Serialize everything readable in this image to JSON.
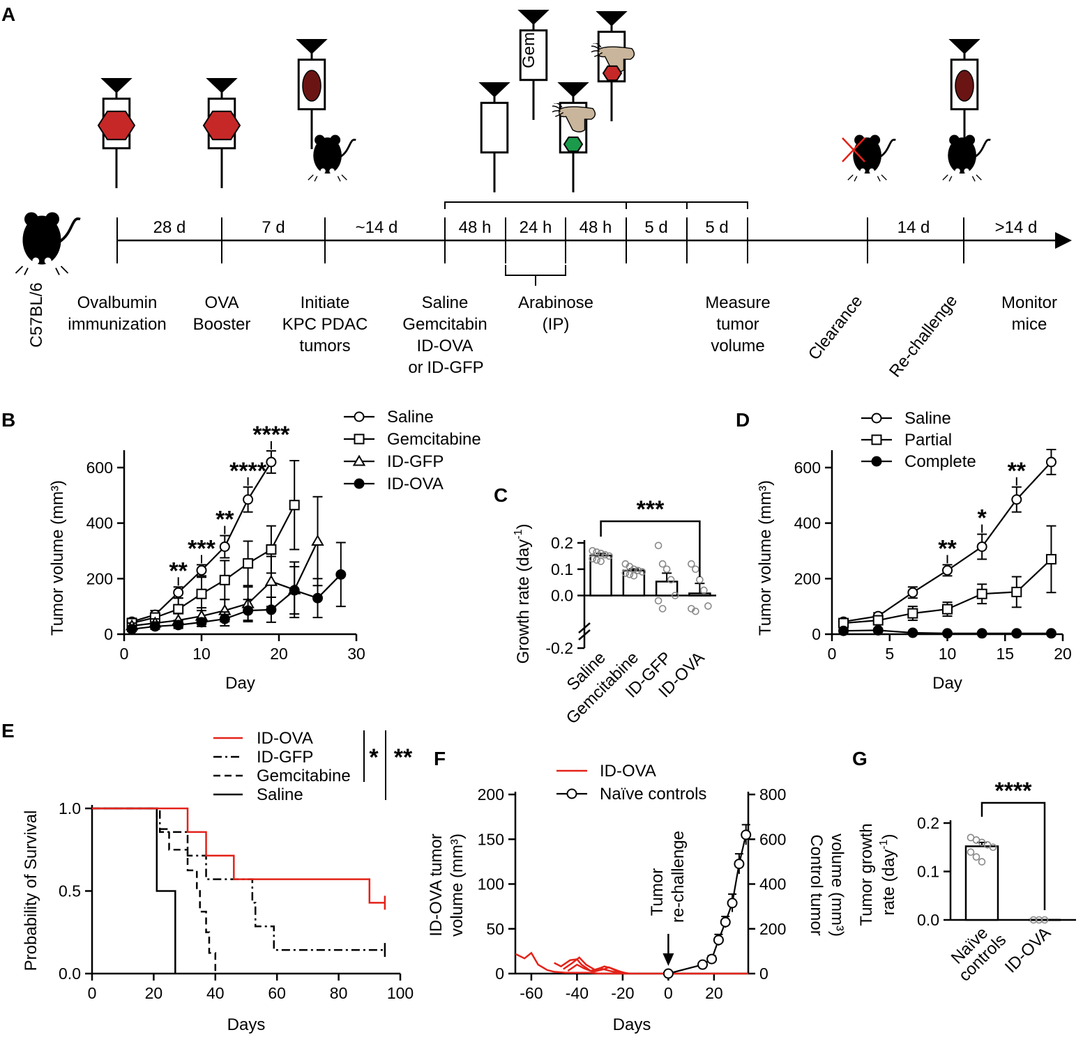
{
  "figure": {
    "panel_labels": {
      "A": "A",
      "B": "B",
      "C": "C",
      "D": "D",
      "E": "E",
      "F": "F",
      "G": "G"
    },
    "panel_a": {
      "strain": "C57BL/6",
      "syringe_gem_label": "Gem",
      "intervals": [
        "28 d",
        "7 d",
        "~14 d",
        "48 h",
        "24 h",
        "48 h",
        "5 d",
        "5 d",
        "14 d",
        ">14 d"
      ],
      "steps": [
        {
          "lines": [
            "Ovalbumin",
            "immunization"
          ]
        },
        {
          "lines": [
            "OVA",
            "Booster"
          ]
        },
        {
          "lines": [
            "Initiate",
            "KPC PDAC",
            "tumors"
          ]
        },
        {
          "lines": [
            "Saline",
            "Gemcitabin"
          ]
        },
        {
          "lines": [
            "Arabinose",
            "(IP)"
          ]
        },
        {
          "lines": [
            "Measure",
            "tumor",
            "volume"
          ]
        }
      ],
      "id_ova_text": "ID-OVA",
      "or_text": "or",
      "id_gfp_text": "ID-GFP",
      "clearance": "Clearance",
      "rechallenge": "Re-challenge",
      "monitor": [
        "Monitor",
        "mice"
      ],
      "colors": {
        "hexagon_red": "#c62828",
        "hexagon_green": "#1a9a4a",
        "tumor_dark": "#6b1414",
        "bacteria": "#c9b59b",
        "orange": "#f26b2a",
        "green": "#28a745"
      }
    }
  },
  "chart_data": [
    {
      "panel": "B",
      "type": "line",
      "xlabel": "Day",
      "ylabel": "Tumor volume (mm³)",
      "xlim": [
        0,
        30
      ],
      "ylim": [
        0,
        650
      ],
      "xticks": [
        "0",
        "10",
        "20",
        "30"
      ],
      "yticks": [
        "0",
        "200",
        "400",
        "600"
      ],
      "series": [
        {
          "name": "Saline",
          "marker": "open-circle",
          "x": [
            1,
            4,
            7,
            10,
            13,
            16,
            19
          ],
          "y": [
            45,
            70,
            150,
            230,
            315,
            485,
            620
          ],
          "err": [
            12,
            15,
            20,
            20,
            40,
            45,
            40
          ]
        },
        {
          "name": "Gemcitabine",
          "marker": "open-square",
          "x": [
            1,
            4,
            7,
            10,
            13,
            16,
            19,
            22
          ],
          "y": [
            40,
            60,
            90,
            145,
            195,
            255,
            305,
            465
          ],
          "err": [
            10,
            15,
            40,
            60,
            70,
            80,
            85,
            160
          ]
        },
        {
          "name": "ID-GFP",
          "marker": "open-triangle",
          "x": [
            1,
            4,
            7,
            10,
            13,
            16,
            19,
            22,
            25
          ],
          "y": [
            30,
            40,
            50,
            65,
            85,
            110,
            190,
            160,
            335
          ],
          "err": [
            10,
            15,
            25,
            30,
            40,
            60,
            90,
            100,
            160
          ]
        },
        {
          "name": "ID-OVA",
          "marker": "filled-circle",
          "x": [
            1,
            4,
            7,
            10,
            13,
            16,
            19,
            22,
            25,
            28
          ],
          "y": [
            18,
            28,
            33,
            43,
            55,
            85,
            88,
            158,
            130,
            215
          ],
          "err": [
            8,
            10,
            12,
            15,
            25,
            40,
            45,
            85,
            70,
            115
          ]
        }
      ],
      "annotations": [
        {
          "text": "**",
          "x": 7
        },
        {
          "text": "***",
          "x": 10
        },
        {
          "text": "**",
          "x": 13
        },
        {
          "text": "****",
          "x": 16
        },
        {
          "text": "****",
          "x": 19
        }
      ]
    },
    {
      "panel": "C",
      "type": "bar",
      "ylabel": "Growth rate (day⁻¹)",
      "ylabel_parts": {
        "base": "Growth rate (day",
        "sup": "-1",
        "close": ")"
      },
      "categories": [
        "Saline",
        "Gemcitabine",
        "ID-GFP",
        "ID-OVA"
      ],
      "values": [
        0.152,
        0.095,
        0.053,
        0.008
      ],
      "errors": [
        0.008,
        0.006,
        0.032,
        0.038
      ],
      "points": [
        [
          0.17,
          0.165,
          0.16,
          0.155,
          0.15,
          0.14,
          0.135,
          0.13
        ],
        [
          0.12,
          0.11,
          0.1,
          0.095,
          0.09,
          0.085,
          0.08,
          0.075
        ],
        [
          0.19,
          0.12,
          0.1,
          0.06,
          0.0,
          -0.02,
          -0.05
        ],
        [
          0.12,
          0.1,
          0.06,
          0.02,
          -0.04,
          -0.05,
          -0.06
        ]
      ],
      "ylim": [
        -0.2,
        0.2
      ],
      "yticks": [
        "-0.2",
        "0.0",
        "0.1",
        "0.2"
      ],
      "significance": "***"
    },
    {
      "panel": "D",
      "type": "line",
      "xlabel": "Day",
      "ylabel": "Tumor volume (mm³)",
      "xlim": [
        0,
        20
      ],
      "ylim": [
        0,
        650
      ],
      "xticks": [
        "0",
        "5",
        "10",
        "15",
        "20"
      ],
      "yticks": [
        "0",
        "200",
        "400",
        "600"
      ],
      "series": [
        {
          "name": "Saline",
          "marker": "open-circle",
          "x": [
            1,
            4,
            7,
            10,
            13,
            16,
            19
          ],
          "y": [
            45,
            65,
            150,
            230,
            315,
            485,
            620
          ],
          "err": [
            10,
            12,
            20,
            20,
            45,
            45,
            45
          ]
        },
        {
          "name": "Partial",
          "marker": "open-square",
          "x": [
            1,
            4,
            7,
            10,
            13,
            16,
            19
          ],
          "y": [
            40,
            50,
            75,
            90,
            145,
            152,
            270
          ],
          "err": [
            10,
            12,
            25,
            25,
            35,
            55,
            120
          ]
        },
        {
          "name": "Complete",
          "marker": "filled-circle",
          "x": [
            1,
            4,
            7,
            10,
            13,
            16,
            19
          ],
          "y": [
            12,
            14,
            5,
            3,
            3,
            3,
            3
          ],
          "err": [
            6,
            6,
            3,
            2,
            2,
            2,
            2
          ]
        }
      ],
      "annotations": [
        {
          "text": "**",
          "x": 10
        },
        {
          "text": "*",
          "x": 13
        },
        {
          "text": "**",
          "x": 16
        }
      ]
    },
    {
      "panel": "E",
      "type": "line",
      "xlabel": "Days",
      "ylabel": "Probability of Survival",
      "xlim": [
        0,
        100
      ],
      "ylim": [
        0,
        1
      ],
      "xticks": [
        "0",
        "20",
        "40",
        "60",
        "80",
        "100"
      ],
      "yticks": [
        "0.0",
        "0.5",
        "1.0"
      ],
      "series": [
        {
          "name": "ID-OVA",
          "color": "#e32219",
          "style": "solid",
          "steps": [
            [
              0,
              1.0
            ],
            [
              31,
              0.857
            ],
            [
              37,
              0.714
            ],
            [
              46,
              0.571
            ],
            [
              90,
              0.429
            ],
            [
              95,
              0.429
            ]
          ]
        },
        {
          "name": "ID-GFP",
          "color": "#000000",
          "style": "dashdot",
          "steps": [
            [
              0,
              1.0
            ],
            [
              22,
              0.857
            ],
            [
              31,
              0.714
            ],
            [
              37,
              0.571
            ],
            [
              52,
              0.429
            ],
            [
              53,
              0.286
            ],
            [
              59,
              0.143
            ],
            [
              95,
              0.143
            ]
          ]
        },
        {
          "name": "Gemcitabine",
          "color": "#000000",
          "style": "dashed",
          "steps": [
            [
              0,
              1.0
            ],
            [
              21,
              0.875
            ],
            [
              25,
              0.75
            ],
            [
              31,
              0.625
            ],
            [
              34,
              0.5
            ],
            [
              35,
              0.375
            ],
            [
              37,
              0.25
            ],
            [
              38,
              0.125
            ],
            [
              40,
              0.0
            ]
          ]
        },
        {
          "name": "Saline",
          "color": "#000000",
          "style": "solid",
          "steps": [
            [
              0,
              1.0
            ],
            [
              21,
              0.5
            ],
            [
              27,
              0.0
            ]
          ]
        }
      ],
      "significance": [
        "*",
        "**"
      ]
    },
    {
      "panel": "F",
      "type": "line",
      "xlabel": "Days",
      "ylabel_left": [
        "ID-OVA tumor",
        "volume (mm³)"
      ],
      "ylabel_right": [
        "Control tumor",
        "volume (mm³)"
      ],
      "xlim": [
        -67,
        35
      ],
      "ylim_left": [
        0,
        200
      ],
      "ylim_right": [
        0,
        800
      ],
      "xticks": [
        "-60",
        "-40",
        "-20",
        "0",
        "20"
      ],
      "yticks_left": [
        "0",
        "50",
        "100",
        "150",
        "200"
      ],
      "yticks_right": [
        "0",
        "200",
        "400",
        "600",
        "800"
      ],
      "annotation": [
        "Tumor",
        "re-challenge"
      ],
      "series": [
        {
          "name": "ID-OVA",
          "color": "#e32219",
          "axis": "left",
          "lines": [
            [
              [
                -67,
                22
              ],
              [
                -63,
                17
              ],
              [
                -60,
                23
              ],
              [
                -57,
                10
              ],
              [
                -53,
                4
              ],
              [
                -50,
                2
              ],
              [
                -45,
                1
              ],
              [
                -40,
                1
              ],
              [
                -35,
                1
              ],
              [
                -30,
                0
              ],
              [
                -25,
                0
              ],
              [
                -20,
                0
              ],
              [
                -15,
                0
              ],
              [
                -10,
                0
              ],
              [
                35,
                0
              ]
            ],
            [
              [
                -50,
                12
              ],
              [
                -47,
                8
              ],
              [
                -43,
                15
              ],
              [
                -40,
                16
              ],
              [
                -38,
                10
              ],
              [
                -34,
                3
              ],
              [
                -30,
                6
              ],
              [
                -27,
                4
              ],
              [
                -24,
                2
              ],
              [
                -20,
                0
              ]
            ],
            [
              [
                -46,
                5
              ],
              [
                -42,
                12
              ],
              [
                -39,
                18
              ],
              [
                -36,
                10
              ],
              [
                -32,
                4
              ],
              [
                -28,
                8
              ],
              [
                -25,
                6
              ],
              [
                -22,
                3
              ],
              [
                -18,
                0
              ]
            ],
            [
              [
                -44,
                3
              ],
              [
                -40,
                10
              ],
              [
                -37,
                6
              ],
              [
                -33,
                2
              ],
              [
                -28,
                5
              ],
              [
                -26,
                7
              ],
              [
                -22,
                2
              ],
              [
                -17,
                0
              ]
            ]
          ]
        },
        {
          "name": "Naïve controls",
          "marker": "open-circle",
          "axis": "right",
          "x": [
            0,
            15,
            19,
            22,
            25,
            28,
            31,
            34
          ],
          "y": [
            0,
            40,
            65,
            150,
            230,
            315,
            490,
            620
          ],
          "err": [
            0,
            10,
            15,
            25,
            25,
            40,
            45,
            45
          ]
        }
      ]
    },
    {
      "panel": "G",
      "type": "bar",
      "ylabel": "Tumor growth rate (day⁻¹)",
      "ylabel_parts": {
        "line1": "Tumor growth",
        "base": "rate (day",
        "sup": "-1",
        "close": ")"
      },
      "categories": [
        "Naïve controls",
        "ID-OVA"
      ],
      "category_lines": [
        [
          "Naïve",
          "controls"
        ],
        [
          "ID-OVA"
        ]
      ],
      "values": [
        0.152,
        0.0
      ],
      "errors": [
        0.008,
        0.0
      ],
      "points": [
        [
          0.17,
          0.165,
          0.16,
          0.155,
          0.15,
          0.14,
          0.13,
          0.12
        ],
        [
          0.0,
          0.0,
          0.0
        ]
      ],
      "ylim": [
        0,
        0.2
      ],
      "yticks": [
        "0.0",
        "0.1",
        "0.2"
      ],
      "significance": "****"
    }
  ]
}
